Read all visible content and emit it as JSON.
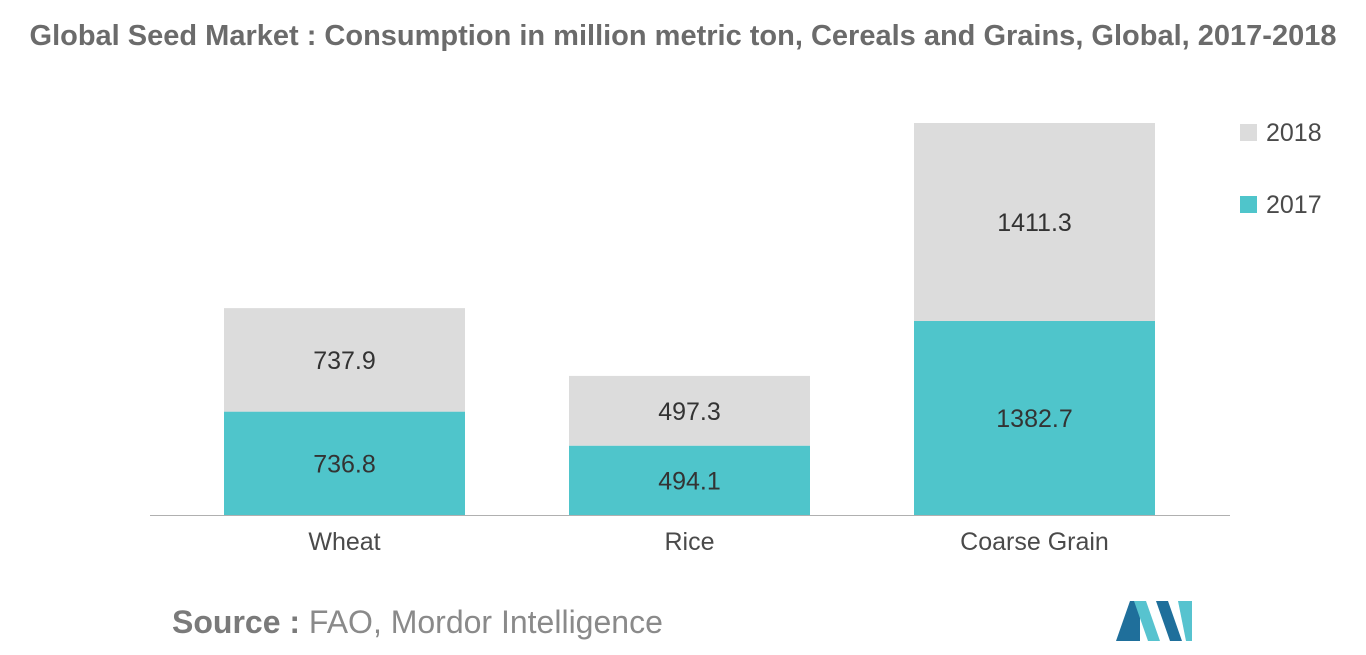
{
  "chart_data": {
    "type": "bar",
    "stacked": true,
    "title": "Global Seed Market : Consumption in million metric ton, Cereals and Grains, Global, 2017-2018",
    "categories": [
      "Wheat",
      "Rice",
      "Coarse Grain"
    ],
    "series": [
      {
        "name": "2017",
        "color": "#4fc5cb",
        "values": [
          736.8,
          494.1,
          1382.7
        ]
      },
      {
        "name": "2018",
        "color": "#dcdcdc",
        "values": [
          737.9,
          497.3,
          1411.3
        ]
      }
    ],
    "legend": {
      "position": "top-right",
      "order": [
        "2018",
        "2017"
      ]
    },
    "xlabel": "",
    "ylabel": "",
    "grid": false,
    "ylim": [
      0,
      2794
    ]
  },
  "source": {
    "label": "Source :",
    "text": "FAO, Mordor Intelligence"
  },
  "logo": {
    "colors": [
      "#1f6f9b",
      "#57c3cf"
    ]
  }
}
